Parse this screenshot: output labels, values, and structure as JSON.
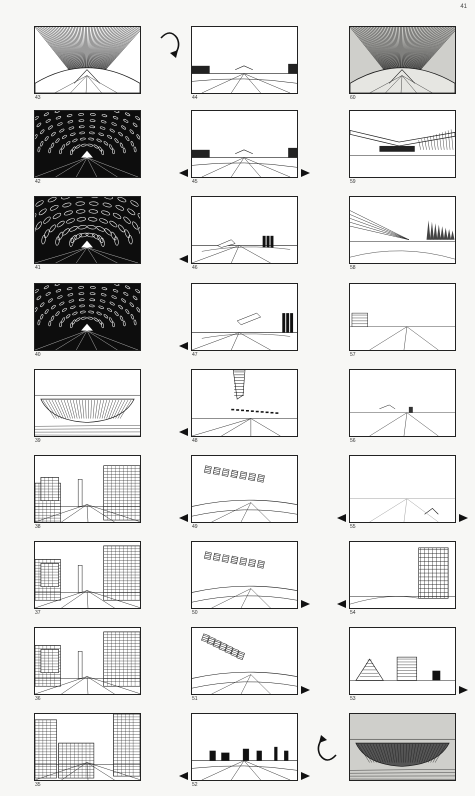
{
  "page": {
    "number": "41"
  },
  "frames": [
    {
      "col": 0,
      "row": 0,
      "num": "43",
      "kind": "canyon-hatch"
    },
    {
      "col": 0,
      "row": 1,
      "num": "42",
      "kind": "night-lights"
    },
    {
      "col": 0,
      "row": 2,
      "num": "41",
      "kind": "night-lights-big"
    },
    {
      "col": 0,
      "row": 3,
      "num": "40",
      "kind": "night-lights"
    },
    {
      "col": 0,
      "row": 4,
      "num": "39",
      "kind": "bowl"
    },
    {
      "col": 0,
      "row": 5,
      "num": "38",
      "kind": "city-street"
    },
    {
      "col": 0,
      "row": 6,
      "num": "37",
      "kind": "city-street-deep"
    },
    {
      "col": 0,
      "row": 7,
      "num": "36",
      "kind": "city-street-deep"
    },
    {
      "col": 0,
      "row": 8,
      "num": "35",
      "kind": "city-close"
    },
    {
      "col": 1,
      "row": 0,
      "num": "44",
      "kind": "horizon-road"
    },
    {
      "col": 1,
      "row": 1,
      "num": "45",
      "kind": "horizon-road"
    },
    {
      "col": 1,
      "row": 2,
      "num": "46",
      "kind": "towers-far"
    },
    {
      "col": 1,
      "row": 3,
      "num": "47",
      "kind": "towers-near"
    },
    {
      "col": 1,
      "row": 4,
      "num": "48",
      "kind": "tall-sign"
    },
    {
      "col": 1,
      "row": 5,
      "num": "49",
      "kind": "signs-curve"
    },
    {
      "col": 1,
      "row": 6,
      "num": "50",
      "kind": "signs-curve"
    },
    {
      "col": 1,
      "row": 7,
      "num": "51",
      "kind": "signs-curve-left"
    },
    {
      "col": 1,
      "row": 8,
      "num": "52",
      "kind": "horizon-skyline"
    },
    {
      "col": 2,
      "row": 0,
      "num": "60",
      "kind": "canyon-gray"
    },
    {
      "col": 2,
      "row": 1,
      "num": "59",
      "kind": "overpass"
    },
    {
      "col": 2,
      "row": 2,
      "num": "58",
      "kind": "sweep-trees"
    },
    {
      "col": 2,
      "row": 3,
      "num": "57",
      "kind": "sparse-left"
    },
    {
      "col": 2,
      "row": 4,
      "num": "56",
      "kind": "sparse"
    },
    {
      "col": 2,
      "row": 5,
      "num": "55",
      "kind": "faint"
    },
    {
      "col": 2,
      "row": 6,
      "num": "54",
      "kind": "gas-tank"
    },
    {
      "col": 2,
      "row": 7,
      "num": "53",
      "kind": "pyramid-tower"
    },
    {
      "col": 2,
      "row": 8,
      "num": "",
      "kind": "gray-bowl"
    }
  ],
  "arrows": [
    {
      "col": 1,
      "row": 1,
      "dir": "left"
    },
    {
      "col": 1,
      "row": 1,
      "dir": "right"
    },
    {
      "col": 1,
      "row": 2,
      "dir": "left"
    },
    {
      "col": 1,
      "row": 3,
      "dir": "left"
    },
    {
      "col": 1,
      "row": 4,
      "dir": "left"
    },
    {
      "col": 1,
      "row": 5,
      "dir": "left"
    },
    {
      "col": 1,
      "row": 6,
      "dir": "right"
    },
    {
      "col": 1,
      "row": 7,
      "dir": "right"
    },
    {
      "col": 1,
      "row": 8,
      "dir": "left"
    },
    {
      "col": 1,
      "row": 8,
      "dir": "right"
    },
    {
      "col": 2,
      "row": 5,
      "dir": "left"
    },
    {
      "col": 2,
      "row": 5,
      "dir": "right"
    },
    {
      "col": 2,
      "row": 6,
      "dir": "left"
    },
    {
      "col": 2,
      "row": 7,
      "dir": "right"
    }
  ],
  "rotations": [
    {
      "slot": "top",
      "name": "rotate-clockwise-icon"
    },
    {
      "slot": "bottom",
      "name": "rotate-counterclockwise-icon"
    }
  ]
}
